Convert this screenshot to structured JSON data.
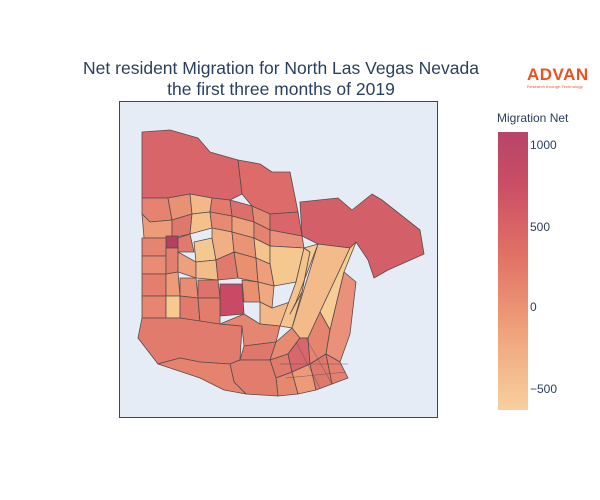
{
  "title": {
    "line1": "Net resident Migration for North Las Vegas Nevada",
    "line2": "the first three months of 2019"
  },
  "logo": {
    "word": "ADVAN",
    "tagline": "Research through Technology",
    "color": "#e8541e"
  },
  "colorbar": {
    "title": "Migration Net",
    "range": [
      -650,
      1100
    ],
    "ticks": [
      {
        "value": 1000,
        "label": "1000"
      },
      {
        "value": 500,
        "label": "500"
      },
      {
        "value": 0,
        "label": "0"
      },
      {
        "value": -500,
        "label": "−500"
      }
    ],
    "colorscale": [
      "#f7d09e",
      "#f0a27b",
      "#e17266",
      "#c94d65",
      "#b7456a"
    ]
  },
  "map": {
    "background": "#e5ecf6",
    "border_color": "#444444",
    "tract_border": "#5a4a4a",
    "colorscale_name": "sequential peach-to-raspberry",
    "region": "North Las Vegas, Nevada"
  }
}
